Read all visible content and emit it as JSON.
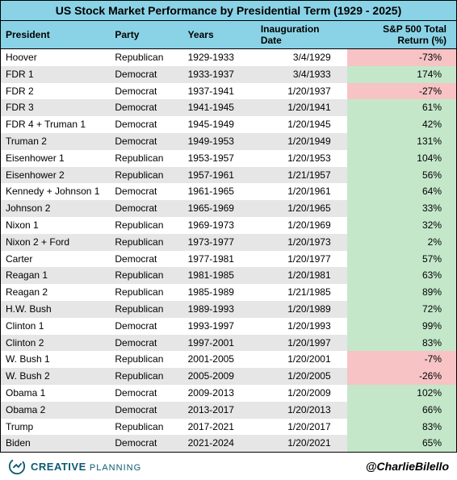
{
  "title": "US Stock Market Performance by Presidential Term (1929 - 2025)",
  "columns": [
    "President",
    "Party",
    "Years",
    "Inauguration Date",
    "S&P 500 Total Return (%)"
  ],
  "colors": {
    "header_bg": "#8ad3e6",
    "row_alt_bg": "#e6e6e6",
    "positive_bg": "#c4e7ca",
    "negative_bg": "#f7c3c5"
  },
  "rows": [
    {
      "president": "Hoover",
      "party": "Republican",
      "years": "1929-1933",
      "date": "3/4/1929",
      "ret": "-73%",
      "sign": "neg"
    },
    {
      "president": "FDR 1",
      "party": "Democrat",
      "years": "1933-1937",
      "date": "3/4/1933",
      "ret": "174%",
      "sign": "pos"
    },
    {
      "president": "FDR 2",
      "party": "Democrat",
      "years": "1937-1941",
      "date": "1/20/1937",
      "ret": "-27%",
      "sign": "neg"
    },
    {
      "president": "FDR 3",
      "party": "Democrat",
      "years": "1941-1945",
      "date": "1/20/1941",
      "ret": "61%",
      "sign": "pos"
    },
    {
      "president": "FDR 4 + Truman 1",
      "party": "Democrat",
      "years": "1945-1949",
      "date": "1/20/1945",
      "ret": "42%",
      "sign": "pos"
    },
    {
      "president": "Truman 2",
      "party": "Democrat",
      "years": "1949-1953",
      "date": "1/20/1949",
      "ret": "131%",
      "sign": "pos"
    },
    {
      "president": "Eisenhower 1",
      "party": "Republican",
      "years": "1953-1957",
      "date": "1/20/1953",
      "ret": "104%",
      "sign": "pos"
    },
    {
      "president": "Eisenhower 2",
      "party": "Republican",
      "years": "1957-1961",
      "date": "1/21/1957",
      "ret": "56%",
      "sign": "pos"
    },
    {
      "president": "Kennedy + Johnson 1",
      "party": "Democrat",
      "years": "1961-1965",
      "date": "1/20/1961",
      "ret": "64%",
      "sign": "pos"
    },
    {
      "president": "Johnson 2",
      "party": "Democrat",
      "years": "1965-1969",
      "date": "1/20/1965",
      "ret": "33%",
      "sign": "pos"
    },
    {
      "president": "Nixon 1",
      "party": "Republican",
      "years": "1969-1973",
      "date": "1/20/1969",
      "ret": "32%",
      "sign": "pos"
    },
    {
      "president": "Nixon 2 + Ford",
      "party": "Republican",
      "years": "1973-1977",
      "date": "1/20/1973",
      "ret": "2%",
      "sign": "pos"
    },
    {
      "president": "Carter",
      "party": "Democrat",
      "years": "1977-1981",
      "date": "1/20/1977",
      "ret": "57%",
      "sign": "pos"
    },
    {
      "president": "Reagan 1",
      "party": "Republican",
      "years": "1981-1985",
      "date": "1/20/1981",
      "ret": "63%",
      "sign": "pos"
    },
    {
      "president": "Reagan 2",
      "party": "Republican",
      "years": "1985-1989",
      "date": "1/21/1985",
      "ret": "89%",
      "sign": "pos"
    },
    {
      "president": "H.W. Bush",
      "party": "Republican",
      "years": "1989-1993",
      "date": "1/20/1989",
      "ret": "72%",
      "sign": "pos"
    },
    {
      "president": "Clinton 1",
      "party": "Democrat",
      "years": "1993-1997",
      "date": "1/20/1993",
      "ret": "99%",
      "sign": "pos"
    },
    {
      "president": "Clinton 2",
      "party": "Democrat",
      "years": "1997-2001",
      "date": "1/20/1997",
      "ret": "83%",
      "sign": "pos"
    },
    {
      "president": "W. Bush 1",
      "party": "Republican",
      "years": "2001-2005",
      "date": "1/20/2001",
      "ret": "-7%",
      "sign": "neg"
    },
    {
      "president": "W. Bush 2",
      "party": "Republican",
      "years": "2005-2009",
      "date": "1/20/2005",
      "ret": "-26%",
      "sign": "neg"
    },
    {
      "president": "Obama 1",
      "party": "Democrat",
      "years": "2009-2013",
      "date": "1/20/2009",
      "ret": "102%",
      "sign": "pos"
    },
    {
      "president": "Obama 2",
      "party": "Democrat",
      "years": "2013-2017",
      "date": "1/20/2013",
      "ret": "66%",
      "sign": "pos"
    },
    {
      "president": "Trump",
      "party": "Republican",
      "years": "2017-2021",
      "date": "1/20/2017",
      "ret": "83%",
      "sign": "pos"
    },
    {
      "president": "Biden",
      "party": "Democrat",
      "years": "2021-2024",
      "date": "1/20/2021",
      "ret": "65%",
      "sign": "pos"
    }
  ],
  "footer": {
    "brand_main": "CREATIVE",
    "brand_sub": "PLANNING",
    "handle": "@CharlieBilello"
  }
}
